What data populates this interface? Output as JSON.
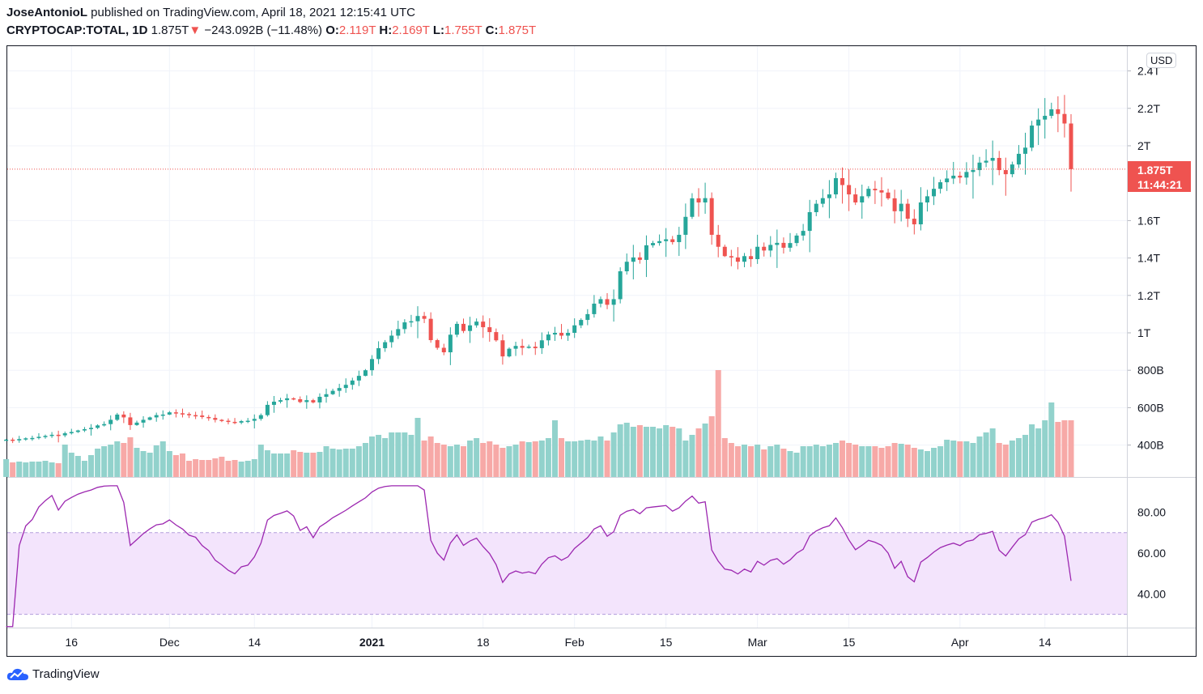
{
  "header": {
    "author": "JoseAntonioL",
    "published_text": "published on TradingView.com, April 18, 2021 12:15:41 UTC",
    "symbol": "CRYPTOCAP:TOTAL, 1D",
    "last_price": "1.875T",
    "change": "−243.092B (−11.48%)",
    "o_label": "O:",
    "o": "2.119T",
    "h_label": "H:",
    "h": "2.169T",
    "l_label": "L:",
    "l": "1.755T",
    "c_label": "C:",
    "c": "1.875T"
  },
  "price_scale": {
    "currency": "USD",
    "badge_price": "1.875T",
    "badge_countdown": "11:44:21"
  },
  "footer": {
    "brand": "TradingView"
  },
  "colors": {
    "up": "#26a69a",
    "down": "#ef5350",
    "vol_up": "#92d2cc",
    "vol_down": "#f7a9a7",
    "rsi": "#9c27b0",
    "rsi_band": "#f3e4fc"
  },
  "chart_data": {
    "type": "candlestick",
    "title": "CRYPTOCAP:TOTAL, 1D",
    "start_date": "2020-11-06",
    "end_date": "2021-04-18",
    "units": "USD billions",
    "ylim": [
      320,
      2420
    ],
    "y_ticks": [
      {
        "value": 2400,
        "label": "2.4T"
      },
      {
        "value": 2200,
        "label": "2.2T"
      },
      {
        "value": 2000,
        "label": "2T"
      },
      {
        "value": 1600,
        "label": "1.6T"
      },
      {
        "value": 1400,
        "label": "1.4T"
      },
      {
        "value": 1200,
        "label": "1.2T"
      },
      {
        "value": 1000,
        "label": "1T"
      },
      {
        "value": 800,
        "label": "800B"
      },
      {
        "value": 600,
        "label": "600B"
      },
      {
        "value": 400,
        "label": "400B"
      }
    ],
    "x_ticks": [
      {
        "date": "2020-11-16",
        "label": "16",
        "bold": false
      },
      {
        "date": "2020-12-01",
        "label": "Dec",
        "bold": false
      },
      {
        "date": "2020-12-14",
        "label": "14",
        "bold": false
      },
      {
        "date": "2021-01-01",
        "label": "2021",
        "bold": true
      },
      {
        "date": "2021-01-18",
        "label": "18",
        "bold": false
      },
      {
        "date": "2021-02-01",
        "label": "Feb",
        "bold": false
      },
      {
        "date": "2021-02-15",
        "label": "15",
        "bold": false
      },
      {
        "date": "2021-03-01",
        "label": "Mar",
        "bold": false
      },
      {
        "date": "2021-03-15",
        "label": "15",
        "bold": false
      },
      {
        "date": "2021-04-01",
        "label": "Apr",
        "bold": false
      },
      {
        "date": "2021-04-14",
        "label": "14",
        "bold": false
      }
    ],
    "closes": [
      429,
      425,
      432,
      436,
      438,
      444,
      449,
      455,
      452,
      463,
      470,
      478,
      485,
      492,
      505,
      512,
      535,
      563,
      548,
      507,
      520,
      535,
      548,
      560,
      563,
      575,
      570,
      566,
      560,
      558,
      550,
      545,
      535,
      530,
      524,
      520,
      528,
      530,
      540,
      560,
      615,
      632,
      640,
      650,
      645,
      630,
      640,
      628,
      658,
      672,
      690,
      705,
      722,
      745,
      770,
      800,
      860,
      918,
      950,
      985,
      1020,
      1056,
      1062,
      1090,
      1075,
      961,
      920,
      896,
      990,
      1048,
      1010,
      1040,
      1060,
      1030,
      1004,
      960,
      874,
      915,
      930,
      920,
      926,
      918,
      960,
      991,
      1000,
      985,
      1000,
      1040,
      1069,
      1100,
      1156,
      1180,
      1150,
      1180,
      1329,
      1380,
      1403,
      1390,
      1468,
      1480,
      1490,
      1500,
      1485,
      1524,
      1620,
      1719,
      1697,
      1720,
      1524,
      1460,
      1410,
      1403,
      1380,
      1410,
      1394,
      1460,
      1440,
      1470,
      1481,
      1455,
      1480,
      1520,
      1545,
      1645,
      1690,
      1720,
      1740,
      1827,
      1790,
      1740,
      1697,
      1730,
      1770,
      1762,
      1750,
      1719,
      1650,
      1690,
      1610,
      1580,
      1697,
      1730,
      1770,
      1805,
      1825,
      1840,
      1830,
      1860,
      1870,
      1910,
      1920,
      1935,
      1870,
      1848,
      1900,
      1957,
      1990,
      2108,
      2140,
      2160,
      2195,
      2170,
      2119,
      1875
    ],
    "last_candle": {
      "open": 2119,
      "high": 2169,
      "low": 1755,
      "close": 1875
    },
    "volume_units": "relative",
    "volumes": [
      22,
      18,
      19,
      18,
      19,
      19,
      20,
      18,
      17,
      40,
      30,
      26,
      20,
      27,
      35,
      38,
      40,
      44,
      42,
      49,
      36,
      32,
      30,
      39,
      44,
      32,
      27,
      29,
      20,
      22,
      21,
      21,
      23,
      25,
      20,
      21,
      19,
      20,
      22,
      40,
      33,
      29,
      29,
      29,
      33,
      31,
      30,
      30,
      31,
      38,
      35,
      34,
      35,
      35,
      38,
      42,
      50,
      52,
      48,
      55,
      55,
      55,
      52,
      73,
      45,
      50,
      42,
      40,
      38,
      40,
      38,
      45,
      48,
      42,
      44,
      40,
      36,
      38,
      40,
      44,
      43,
      44,
      45,
      48,
      70,
      48,
      44,
      44,
      45,
      46,
      45,
      50,
      45,
      55,
      65,
      67,
      62,
      64,
      62,
      62,
      60,
      64,
      62,
      60,
      45,
      52,
      60,
      66,
      75,
      132,
      48,
      42,
      38,
      40,
      38,
      40,
      34,
      38,
      40,
      35,
      32,
      30,
      38,
      38,
      40,
      38,
      40,
      42,
      45,
      42,
      40,
      38,
      38,
      38,
      36,
      38,
      42,
      41,
      40,
      36,
      34,
      32,
      36,
      38,
      46,
      45,
      44,
      44,
      42,
      50,
      55,
      60,
      42,
      40,
      45,
      48,
      52,
      65,
      60,
      70,
      92,
      68,
      70,
      70
    ],
    "rsi": {
      "period": 14,
      "ylim": [
        24,
        93
      ],
      "bands": [
        30,
        70
      ],
      "y_ticks": [
        {
          "value": 80,
          "label": "80.00"
        },
        {
          "value": 60,
          "label": "60.00"
        },
        {
          "value": 40,
          "label": "40.00"
        }
      ]
    }
  }
}
